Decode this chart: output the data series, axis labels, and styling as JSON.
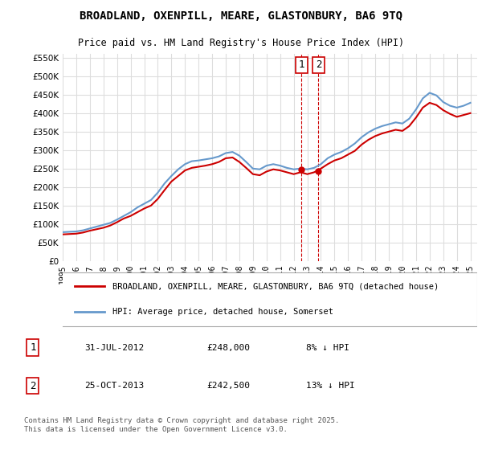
{
  "title": "BROADLAND, OXENPILL, MEARE, GLASTONBURY, BA6 9TQ",
  "subtitle": "Price paid vs. HM Land Registry's House Price Index (HPI)",
  "ylabel": "",
  "ylim": [
    0,
    560000
  ],
  "yticks": [
    0,
    50000,
    100000,
    150000,
    200000,
    250000,
    300000,
    350000,
    400000,
    450000,
    500000,
    550000
  ],
  "background_color": "#ffffff",
  "plot_bg_color": "#ffffff",
  "grid_color": "#dddddd",
  "legend_entries": [
    "BROADLAND, OXENPILL, MEARE, GLASTONBURY, BA6 9TQ (detached house)",
    "HPI: Average price, detached house, Somerset"
  ],
  "legend_colors": [
    "#cc0000",
    "#6699cc"
  ],
  "annotation1_date": "31-JUL-2012",
  "annotation1_price": "£248,000",
  "annotation1_hpi": "8% ↓ HPI",
  "annotation1_label": "1",
  "annotation2_date": "25-OCT-2013",
  "annotation2_price": "£242,500",
  "annotation2_hpi": "13% ↓ HPI",
  "annotation2_label": "2",
  "footer": "Contains HM Land Registry data © Crown copyright and database right 2025.\nThis data is licensed under the Open Government Licence v3.0.",
  "hpi_color": "#6699cc",
  "price_color": "#cc0000",
  "vline_color": "#cc0000",
  "vline_style": "--",
  "annotation_box_color": "#cc0000",
  "hpi_data": {
    "years": [
      1995,
      1995.5,
      1996,
      1996.5,
      1997,
      1997.5,
      1998,
      1998.5,
      1999,
      1999.5,
      2000,
      2000.5,
      2001,
      2001.5,
      2002,
      2002.5,
      2003,
      2003.5,
      2004,
      2004.5,
      2005,
      2005.5,
      2006,
      2006.5,
      2007,
      2007.5,
      2008,
      2008.5,
      2009,
      2009.5,
      2010,
      2010.5,
      2011,
      2011.5,
      2012,
      2012.5,
      2013,
      2013.5,
      2014,
      2014.5,
      2015,
      2015.5,
      2016,
      2016.5,
      2017,
      2017.5,
      2018,
      2018.5,
      2019,
      2019.5,
      2020,
      2020.5,
      2021,
      2021.5,
      2022,
      2022.5,
      2023,
      2023.5,
      2024,
      2024.5,
      2025
    ],
    "values": [
      78000,
      79000,
      80000,
      83000,
      88000,
      93000,
      98000,
      103000,
      112000,
      122000,
      132000,
      145000,
      155000,
      165000,
      185000,
      210000,
      230000,
      248000,
      262000,
      270000,
      272000,
      275000,
      278000,
      283000,
      292000,
      295000,
      285000,
      268000,
      250000,
      248000,
      258000,
      262000,
      258000,
      252000,
      248000,
      250000,
      248000,
      252000,
      262000,
      278000,
      288000,
      295000,
      305000,
      318000,
      335000,
      348000,
      358000,
      365000,
      370000,
      375000,
      372000,
      385000,
      410000,
      440000,
      455000,
      448000,
      430000,
      420000,
      415000,
      420000,
      428000
    ]
  },
  "price_data": {
    "years": [
      1995,
      1995.5,
      1996,
      1996.5,
      1997,
      1997.5,
      1998,
      1998.5,
      1999,
      1999.5,
      2000,
      2000.5,
      2001,
      2001.5,
      2002,
      2002.5,
      2003,
      2003.5,
      2004,
      2004.5,
      2005,
      2005.5,
      2006,
      2006.5,
      2007,
      2007.5,
      2008,
      2008.5,
      2009,
      2009.5,
      2010,
      2010.5,
      2011,
      2011.5,
      2012,
      2012.5,
      2013,
      2013.5,
      2014,
      2014.5,
      2015,
      2015.5,
      2016,
      2016.5,
      2017,
      2017.5,
      2018,
      2018.5,
      2019,
      2019.5,
      2020,
      2020.5,
      2021,
      2021.5,
      2022,
      2022.5,
      2023,
      2023.5,
      2024,
      2024.5,
      2025
    ],
    "values": [
      72000,
      73000,
      74000,
      77000,
      82000,
      86000,
      90000,
      96000,
      105000,
      115000,
      122000,
      132000,
      142000,
      150000,
      168000,
      192000,
      215000,
      230000,
      245000,
      252000,
      255000,
      258000,
      262000,
      268000,
      278000,
      280000,
      268000,
      252000,
      235000,
      232000,
      242000,
      248000,
      245000,
      240000,
      235000,
      240000,
      235000,
      240000,
      250000,
      262000,
      272000,
      278000,
      288000,
      298000,
      315000,
      328000,
      338000,
      345000,
      350000,
      355000,
      352000,
      365000,
      388000,
      415000,
      428000,
      422000,
      408000,
      398000,
      390000,
      395000,
      400000
    ]
  },
  "sale_points": [
    {
      "year": 2012.58,
      "price": 248000,
      "label": "1"
    },
    {
      "year": 2013.82,
      "price": 242500,
      "label": "2"
    }
  ],
  "vline_x1": 2012.58,
  "vline_x2": 2013.82,
  "xmin": 1995,
  "xmax": 2025.5,
  "xticks": [
    1995,
    1996,
    1997,
    1998,
    1999,
    2000,
    2001,
    2002,
    2003,
    2004,
    2005,
    2006,
    2007,
    2008,
    2009,
    2010,
    2011,
    2012,
    2013,
    2014,
    2015,
    2016,
    2017,
    2018,
    2019,
    2020,
    2021,
    2022,
    2023,
    2024,
    2025
  ]
}
